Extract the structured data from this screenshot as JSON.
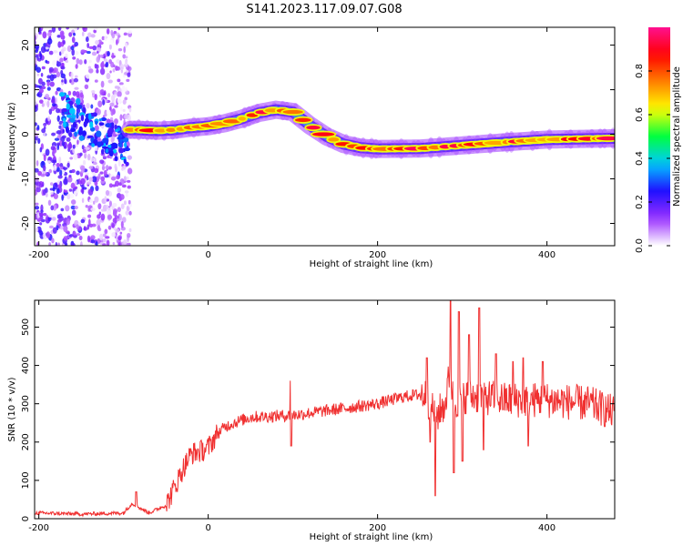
{
  "title": "S141.2023.117.09.07.G08",
  "chart_data": [
    {
      "type": "heatmap",
      "xlabel": "Height of straight line (km)",
      "ylabel": "Frequency (Hz)",
      "xlim": [
        -205,
        480
      ],
      "ylim": [
        -25,
        24
      ],
      "x_ticks": [
        "-200",
        "0",
        "200",
        "400"
      ],
      "y_ticks": [
        "-20",
        "-10",
        "0",
        "10",
        "20"
      ],
      "colorbar": {
        "label": "Normalized spectral amplitude",
        "range": [
          0,
          1
        ],
        "ticks": [
          "0.0",
          "0.2",
          "0.4",
          "0.6",
          "0.8"
        ],
        "colors": [
          "#ffffff",
          "#9b30ff",
          "#2010ff",
          "#00c8ff",
          "#00ff40",
          "#ffff00",
          "#ff8000",
          "#ff0000",
          "#ff1090"
        ]
      },
      "ridge": {
        "x": [
          -92,
          -80,
          -60,
          -40,
          -20,
          0,
          20,
          40,
          60,
          80,
          100,
          120,
          140,
          160,
          180,
          200,
          250,
          300,
          350,
          400,
          450,
          480
        ],
        "y": [
          1.0,
          1.0,
          0.8,
          1.0,
          1.5,
          1.8,
          2.5,
          3.5,
          4.8,
          5.5,
          5.0,
          2.0,
          -0.5,
          -2.2,
          -3.0,
          -3.3,
          -3.2,
          -2.5,
          -1.8,
          -1.2,
          -1.0,
          -0.9
        ]
      },
      "scatter_region": {
        "x_range": [
          -205,
          -92
        ],
        "y_range": [
          -25,
          24
        ]
      }
    },
    {
      "type": "line",
      "xlabel": "Height of straight line (km)",
      "ylabel": "SNR (10 * v/v)",
      "xlim": [
        -205,
        480
      ],
      "ylim": [
        0,
        570
      ],
      "x_ticks": [
        "-200",
        "0",
        "200",
        "400"
      ],
      "y_ticks": [
        "0",
        "100",
        "200",
        "300",
        "400",
        "500"
      ],
      "color": "#f03030",
      "trend": {
        "x": [
          -205,
          -150,
          -100,
          -90,
          -70,
          -50,
          -40,
          -30,
          -20,
          -10,
          0,
          10,
          20,
          30,
          50,
          100,
          150,
          200,
          230,
          250,
          255,
          265,
          270,
          280,
          285,
          290,
          300,
          320,
          350,
          400,
          450,
          480
        ],
        "y": [
          15,
          12,
          15,
          40,
          15,
          35,
          80,
          130,
          170,
          175,
          185,
          220,
          240,
          250,
          265,
          270,
          285,
          300,
          318,
          325,
          325,
          290,
          270,
          300,
          380,
          300,
          320,
          320,
          310,
          310,
          300,
          275
        ]
      },
      "spikes": [
        {
          "x": -85,
          "y": 70
        },
        {
          "x": 97,
          "y": 360
        },
        {
          "x": 98,
          "y": 190
        },
        {
          "x": 258,
          "y": 420
        },
        {
          "x": 262,
          "y": 200
        },
        {
          "x": 268,
          "y": 60
        },
        {
          "x": 286,
          "y": 570
        },
        {
          "x": 290,
          "y": 120
        },
        {
          "x": 296,
          "y": 540
        },
        {
          "x": 300,
          "y": 150
        },
        {
          "x": 308,
          "y": 480
        },
        {
          "x": 320,
          "y": 550
        },
        {
          "x": 325,
          "y": 180
        },
        {
          "x": 340,
          "y": 430
        },
        {
          "x": 360,
          "y": 410
        },
        {
          "x": 372,
          "y": 420
        },
        {
          "x": 378,
          "y": 190
        },
        {
          "x": 395,
          "y": 410
        }
      ]
    }
  ]
}
